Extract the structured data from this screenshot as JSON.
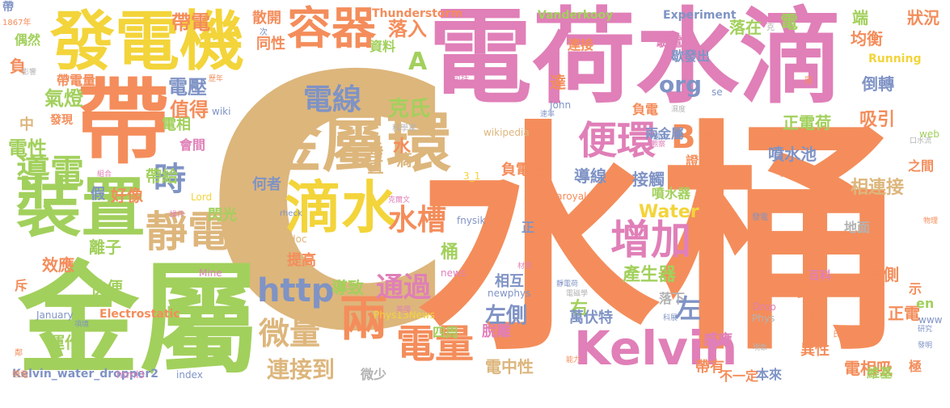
{
  "palette": {
    "orange": "#f48d5b",
    "pink": "#e07fb8",
    "tan": "#ddb67c",
    "green": "#a2d05c",
    "blue": "#7f93c5",
    "yellow": "#f3d43a",
    "gray": "#b3b3b3"
  },
  "words": [
    {
      "text": "C",
      "c": "tan"
    },
    {
      "text": "水桶",
      "c": "orange"
    },
    {
      "text": "電荷水滴",
      "c": "pink"
    },
    {
      "text": "金屬",
      "c": "green"
    },
    {
      "text": "帶",
      "c": "orange"
    },
    {
      "text": "發電機",
      "c": "yellow"
    },
    {
      "text": "裝置",
      "c": "green"
    },
    {
      "text": "金屬環",
      "c": "tan"
    },
    {
      "text": "滴水",
      "c": "yellow"
    },
    {
      "text": "容器",
      "c": "orange"
    },
    {
      "text": "Kelvin",
      "c": "pink"
    },
    {
      "text": "兩",
      "c": "orange"
    },
    {
      "text": "靜電",
      "c": "tan"
    },
    {
      "text": "增加",
      "c": "pink"
    },
    {
      "text": "便環",
      "c": "pink"
    },
    {
      "text": "http",
      "c": "blue"
    },
    {
      "text": "微量",
      "c": "tan"
    },
    {
      "text": "電量",
      "c": "orange"
    },
    {
      "text": "導電",
      "c": "green"
    },
    {
      "text": "電線",
      "c": "blue"
    },
    {
      "text": "時",
      "c": "blue"
    },
    {
      "text": "水槽",
      "c": "orange"
    },
    {
      "text": "通過",
      "c": "pink"
    },
    {
      "text": "B",
      "c": "orange"
    },
    {
      "text": "左",
      "c": "blue"
    },
    {
      "text": "A",
      "c": "green"
    },
    {
      "text": "org",
      "c": "blue"
    },
    {
      "text": "連接到",
      "c": "tan"
    },
    {
      "text": "左側",
      "c": "blue"
    },
    {
      "text": "克氏",
      "c": "green"
    },
    {
      "text": "落入",
      "c": "orange"
    },
    {
      "text": "電壓",
      "c": "blue"
    },
    {
      "text": "值得",
      "c": "orange"
    },
    {
      "text": "氣燈",
      "c": "green"
    },
    {
      "text": "電性",
      "c": "green"
    },
    {
      "text": "帶電",
      "c": "orange"
    },
    {
      "text": "產生器",
      "c": "green"
    },
    {
      "text": "Water",
      "c": "yellow"
    },
    {
      "text": "相連接",
      "c": "tan"
    },
    {
      "text": "電",
      "c": "green"
    },
    {
      "text": "組",
      "c": "orange"
    },
    {
      "text": "右",
      "c": "green"
    },
    {
      "text": "水",
      "c": "orange"
    },
    {
      "text": "桶",
      "c": "green"
    },
    {
      "text": "滴",
      "c": "tan"
    },
    {
      "text": "垂直",
      "c": "tan"
    },
    {
      "text": "導致",
      "c": "green"
    },
    {
      "text": "同性",
      "c": "orange"
    },
    {
      "text": "散開",
      "c": "orange"
    },
    {
      "text": "資料",
      "c": "green"
    },
    {
      "text": "Thunderstorm",
      "c": "orange"
    },
    {
      "text": "Vanderkooy",
      "c": "green"
    },
    {
      "text": "Experiment",
      "c": "blue"
    },
    {
      "text": "連接",
      "c": "orange"
    },
    {
      "text": "驗電器",
      "c": "pink"
    },
    {
      "text": "落在",
      "c": "green"
    },
    {
      "text": "端",
      "c": "green"
    },
    {
      "text": "均衡",
      "c": "orange"
    },
    {
      "text": "狀況",
      "c": "orange"
    },
    {
      "text": "Running",
      "c": "yellow"
    },
    {
      "text": "倒轉",
      "c": "blue"
    },
    {
      "text": "歇發出",
      "c": "blue"
    },
    {
      "text": "達",
      "c": "orange"
    },
    {
      "text": "負電",
      "c": "orange"
    },
    {
      "text": "兩金屬",
      "c": "blue"
    },
    {
      "text": "正電荷",
      "c": "green"
    },
    {
      "text": "吸引",
      "c": "orange"
    },
    {
      "text": "噴水池",
      "c": "blue"
    },
    {
      "text": "證明",
      "c": "orange"
    },
    {
      "text": "之間",
      "c": "orange"
    },
    {
      "text": "接觸",
      "c": "blue"
    },
    {
      "text": "噴水器",
      "c": "green"
    },
    {
      "text": "導線",
      "c": "blue"
    },
    {
      "text": "負電性",
      "c": "orange"
    },
    {
      "text": "帶給",
      "c": "green"
    },
    {
      "text": "會間",
      "c": "pink"
    },
    {
      "text": "電相",
      "c": "green"
    },
    {
      "text": "何者",
      "c": "blue"
    },
    {
      "text": "好像",
      "c": "orange"
    },
    {
      "text": "閃光",
      "c": "green"
    },
    {
      "text": "假",
      "c": "blue"
    },
    {
      "text": "提高",
      "c": "orange"
    },
    {
      "text": "離子",
      "c": "green"
    },
    {
      "text": "快便",
      "c": "green"
    },
    {
      "text": "效應",
      "c": "orange"
    },
    {
      "text": "運作",
      "c": "green"
    },
    {
      "text": "斥",
      "c": "orange"
    },
    {
      "text": "Kelvin_water_dropper2",
      "c": "blue"
    },
    {
      "text": "html3",
      "c": "pink"
    },
    {
      "text": "index",
      "c": "blue"
    },
    {
      "text": "微少",
      "c": "gray"
    },
    {
      "text": "電中性",
      "c": "tan"
    },
    {
      "text": "帶有",
      "c": "orange"
    },
    {
      "text": "不一定",
      "c": "orange"
    },
    {
      "text": "本來",
      "c": "blue"
    },
    {
      "text": "電相吸",
      "c": "orange"
    },
    {
      "text": "維基",
      "c": "green"
    },
    {
      "text": "極",
      "c": "orange"
    },
    {
      "text": "四周",
      "c": "green"
    },
    {
      "text": "脫離",
      "c": "pink"
    },
    {
      "text": "萬伏特",
      "c": "blue"
    },
    {
      "text": "感應",
      "c": "pink"
    },
    {
      "text": "異性",
      "c": "orange"
    },
    {
      "text": "右側",
      "c": "orange"
    },
    {
      "text": "正電",
      "c": "orange"
    },
    {
      "text": "設",
      "c": "orange"
    },
    {
      "text": "參考",
      "c": "orange"
    },
    {
      "text": "百科",
      "c": "pink"
    },
    {
      "text": "示",
      "c": "orange"
    },
    {
      "text": "en",
      "c": "green"
    },
    {
      "text": "www",
      "c": "blue"
    },
    {
      "text": "相互",
      "c": "blue"
    },
    {
      "text": "落下",
      "c": "gray"
    },
    {
      "text": "地面",
      "c": "gray"
    },
    {
      "text": "帶電量",
      "c": "orange"
    },
    {
      "text": "發現",
      "c": "orange"
    },
    {
      "text": "偶然",
      "c": "green"
    },
    {
      "text": "負",
      "c": "orange"
    },
    {
      "text": "中",
      "c": "tan"
    },
    {
      "text": "正",
      "c": "blue"
    },
    {
      "text": "fnysik",
      "c": "blue"
    },
    {
      "text": "newphys",
      "c": "blue"
    },
    {
      "text": "Phys13News",
      "c": "yellow"
    },
    {
      "text": "Electrostatic",
      "c": "orange"
    },
    {
      "text": "January",
      "c": "blue"
    },
    {
      "text": "cvcaroyals",
      "c": "orange"
    },
    {
      "text": "wikipedia",
      "c": "tan"
    },
    {
      "text": "John",
      "c": "blue"
    },
    {
      "text": "Phys",
      "c": "gray"
    },
    {
      "text": "Drop",
      "c": "pink"
    },
    {
      "text": "Mine",
      "c": "pink"
    },
    {
      "text": "doc",
      "c": "tan"
    },
    {
      "text": "rheck",
      "c": "blue"
    },
    {
      "text": "wiki",
      "c": "blue"
    },
    {
      "text": "Lord",
      "c": "yellow"
    },
    {
      "text": "news",
      "c": "pink"
    },
    {
      "text": "web",
      "c": "green"
    },
    {
      "text": "se",
      "c": "blue"
    },
    {
      "text": "3_1",
      "c": "yellow"
    },
    {
      "text": "1867年",
      "c": "orange"
    },
    {
      "text": "影響",
      "c": "gray"
    },
    {
      "text": "歷年",
      "c": "orange"
    },
    {
      "text": "次",
      "c": "blue"
    },
    {
      "text": "包括",
      "c": "pink"
    },
    {
      "text": "科學家",
      "c": "gray"
    },
    {
      "text": "國內",
      "c": "blue"
    },
    {
      "text": "觀察",
      "c": "pink"
    },
    {
      "text": "濕度",
      "c": "gray"
    },
    {
      "text": "速率",
      "c": "blue"
    },
    {
      "text": "實驗",
      "c": "orange"
    },
    {
      "text": "口水流",
      "c": "gray"
    },
    {
      "text": "發電",
      "c": "blue"
    },
    {
      "text": "物理",
      "c": "orange"
    },
    {
      "text": "研究",
      "c": "blue"
    },
    {
      "text": "發明",
      "c": "blue"
    },
    {
      "text": "現象",
      "c": "gray"
    },
    {
      "text": "氏",
      "c": "orange"
    },
    {
      "text": "科展",
      "c": "blue"
    },
    {
      "text": "能力",
      "c": "orange"
    },
    {
      "text": "電磁學",
      "c": "gray"
    },
    {
      "text": "靜電荷",
      "c": "blue"
    },
    {
      "text": "英國",
      "c": "pink"
    },
    {
      "text": "材質",
      "c": "pink"
    },
    {
      "text": "克爾文",
      "c": "pink"
    },
    {
      "text": "操作",
      "c": "pink"
    },
    {
      "text": "組合",
      "c": "pink"
    },
    {
      "text": "項境",
      "c": "blue"
    },
    {
      "text": "帶電",
      "c": "orange"
    },
    {
      "text": "克",
      "c": "gray"
    },
    {
      "text": "圖",
      "c": "orange"
    },
    {
      "text": "鄰",
      "c": "orange"
    },
    {
      "text": "帶",
      "c": "blue"
    }
  ]
}
